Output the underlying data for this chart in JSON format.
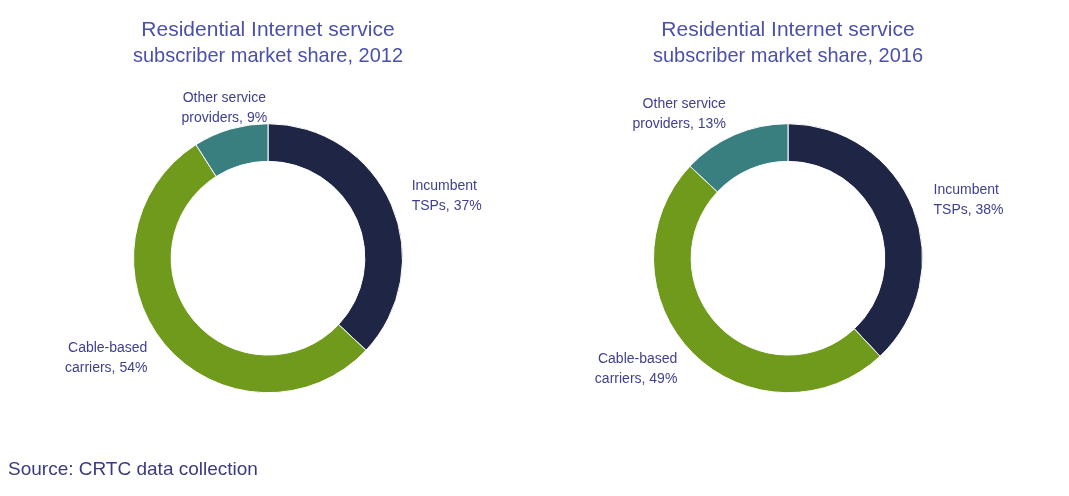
{
  "chart_data": [
    {
      "type": "donut",
      "title": "Residential Internet service subscriber market share, 2012",
      "categories": [
        "Incumbent TSPs",
        "Cable-based carriers",
        "Other service providers"
      ],
      "values": [
        37,
        54,
        9
      ],
      "value_labels": [
        "37%",
        "54%",
        "9%"
      ],
      "colors": [
        "#1f2645",
        "#6f9a1c",
        "#3a7f7f"
      ],
      "annotations": [
        "Source: CRTC data collection"
      ]
    },
    {
      "type": "donut",
      "title": "Residential Internet service subscriber market share, 2016",
      "categories": [
        "Incumbent TSPs",
        "Cable-based carriers",
        "Other service providers"
      ],
      "values": [
        38,
        49,
        13
      ],
      "value_labels": [
        "38%",
        "49%",
        "13%"
      ],
      "colors": [
        "#1f2645",
        "#6f9a1c",
        "#3a7f7f"
      ]
    }
  ]
}
